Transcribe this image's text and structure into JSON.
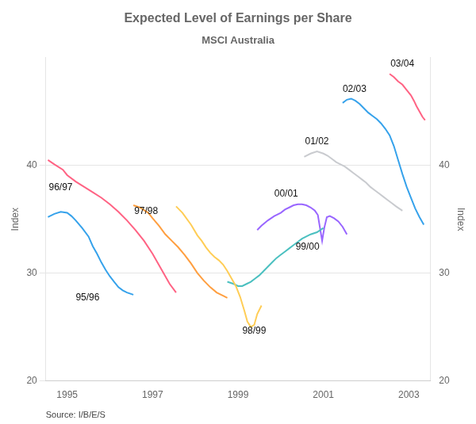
{
  "chart_data": {
    "type": "line",
    "title": "Expected Level of Earnings per Share",
    "subtitle": "MSCI Australia",
    "ylabel": "Index",
    "y2label": "Index",
    "source": "Source: I/B/E/S",
    "xlim": [
      1994.5,
      2003.5
    ],
    "xticks": [
      1995,
      1997,
      1999,
      2001,
      2003
    ],
    "ylim": [
      20,
      50
    ],
    "yticks": [
      20,
      30,
      40
    ],
    "y2lim": [
      20,
      50
    ],
    "y2ticks": [
      20,
      30,
      40
    ],
    "grid": "y",
    "series": [
      {
        "name": "95/96",
        "x": [
          1994.55,
          1994.7,
          1994.85,
          1995.0,
          1995.1,
          1995.2,
          1995.35,
          1995.5,
          1995.6,
          1995.7,
          1995.8,
          1995.9,
          1996.0,
          1996.1,
          1996.2,
          1996.3,
          1996.4,
          1996.55
        ],
        "values": [
          35.2,
          35.5,
          35.7,
          35.6,
          35.3,
          34.9,
          34.2,
          33.4,
          32.5,
          31.8,
          31.0,
          30.3,
          29.7,
          29.2,
          28.7,
          28.4,
          28.2,
          28.0
        ]
      },
      {
        "name": "96/97",
        "x": [
          1994.55,
          1994.7,
          1994.9,
          1995.0,
          1995.2,
          1995.4,
          1995.6,
          1995.8,
          1996.0,
          1996.2,
          1996.4,
          1996.6,
          1996.8,
          1997.0,
          1997.2,
          1997.4,
          1997.55
        ],
        "values": [
          40.5,
          40.1,
          39.6,
          39.1,
          38.5,
          38.0,
          37.5,
          37.0,
          36.4,
          35.7,
          34.9,
          34.0,
          33.0,
          31.8,
          30.4,
          29.0,
          28.2
        ]
      },
      {
        "name": "97/98",
        "x": [
          1996.55,
          1996.7,
          1996.9,
          1997.0,
          1997.15,
          1997.3,
          1997.45,
          1997.6,
          1997.75,
          1997.9,
          1998.05,
          1998.2,
          1998.35,
          1998.5,
          1998.65,
          1998.75
        ],
        "values": [
          36.3,
          36.1,
          35.6,
          35.1,
          34.4,
          33.6,
          33.0,
          32.4,
          31.7,
          30.9,
          30.0,
          29.3,
          28.7,
          28.2,
          27.9,
          27.7
        ]
      },
      {
        "name": "98/99",
        "x": [
          1997.55,
          1997.7,
          1997.9,
          1998.05,
          1998.15,
          1998.25,
          1998.35,
          1998.45,
          1998.55,
          1998.65,
          1998.75,
          1998.85,
          1998.95,
          1999.05,
          1999.15,
          1999.22,
          1999.3,
          1999.38,
          1999.45,
          1999.55
        ],
        "values": [
          36.2,
          35.6,
          34.5,
          33.5,
          33.0,
          32.4,
          31.9,
          31.5,
          31.2,
          30.8,
          30.2,
          29.5,
          28.8,
          27.8,
          26.5,
          25.5,
          25.0,
          25.2,
          26.2,
          27.0
        ]
      },
      {
        "name": "99/00",
        "x": [
          1998.75,
          1998.9,
          1999.0,
          1999.1,
          1999.2,
          1999.3,
          1999.4,
          1999.5,
          1999.6,
          1999.7,
          1999.8,
          1999.9,
          2000.0,
          2000.1,
          2000.2,
          2000.3,
          2000.4,
          2000.5,
          2000.6,
          2000.7,
          2000.85,
          2001.0
        ],
        "values": [
          29.2,
          29.0,
          28.8,
          28.8,
          29.0,
          29.2,
          29.5,
          29.8,
          30.2,
          30.6,
          31.0,
          31.4,
          31.7,
          32.0,
          32.3,
          32.6,
          32.9,
          33.2,
          33.4,
          33.6,
          33.8,
          34.2
        ]
      },
      {
        "name": "00/01",
        "x": [
          1999.45,
          1999.55,
          1999.7,
          1999.85,
          2000.0,
          2000.1,
          2000.2,
          2000.3,
          2000.4,
          2000.5,
          2000.6,
          2000.7,
          2000.8,
          2000.87,
          2000.92,
          2000.97,
          2001.02,
          2001.08,
          2001.15,
          2001.25,
          2001.35,
          2001.45,
          2001.55
        ],
        "values": [
          34.0,
          34.4,
          34.9,
          35.3,
          35.6,
          35.9,
          36.1,
          36.3,
          36.4,
          36.4,
          36.3,
          36.1,
          35.8,
          35.4,
          34.2,
          33.0,
          34.2,
          35.2,
          35.3,
          35.1,
          34.8,
          34.3,
          33.6
        ]
      },
      {
        "name": "01/02",
        "x": [
          2000.55,
          2000.7,
          2000.85,
          2001.0,
          2001.1,
          2001.2,
          2001.3,
          2001.4,
          2001.5,
          2001.6,
          2001.7,
          2001.8,
          2001.9,
          2002.0,
          2002.1,
          2002.2,
          2002.3,
          2002.4,
          2002.5,
          2002.6,
          2002.7,
          2002.85
        ],
        "values": [
          40.8,
          41.1,
          41.3,
          41.1,
          40.9,
          40.6,
          40.3,
          40.1,
          39.9,
          39.6,
          39.3,
          39.0,
          38.7,
          38.4,
          38.0,
          37.7,
          37.4,
          37.1,
          36.8,
          36.5,
          36.2,
          35.8
        ]
      },
      {
        "name": "02/03",
        "x": [
          2001.45,
          2001.55,
          2001.65,
          2001.75,
          2001.85,
          2001.95,
          2002.05,
          2002.15,
          2002.25,
          2002.35,
          2002.45,
          2002.55,
          2002.65,
          2002.75,
          2002.85,
          2002.95,
          2003.05,
          2003.15,
          2003.25,
          2003.35
        ],
        "values": [
          45.8,
          46.1,
          46.2,
          46.0,
          45.7,
          45.3,
          44.9,
          44.6,
          44.3,
          43.9,
          43.4,
          42.8,
          41.8,
          40.5,
          39.2,
          38.0,
          37.0,
          36.0,
          35.2,
          34.5
        ]
      },
      {
        "name": "03/04",
        "x": [
          2002.55,
          2002.65,
          2002.75,
          2002.85,
          2002.95,
          2003.05,
          2003.12,
          2003.18,
          2003.25,
          2003.32,
          2003.38
        ],
        "values": [
          48.5,
          48.2,
          47.8,
          47.5,
          47.0,
          46.5,
          46.0,
          45.5,
          45.0,
          44.5,
          44.2
        ]
      }
    ],
    "annotations": [
      {
        "text": "96/97",
        "x": 1994.57,
        "y": 37.5
      },
      {
        "text": "95/96",
        "x": 1995.2,
        "y": 27.3
      },
      {
        "text": "97/98",
        "x": 1996.57,
        "y": 35.3
      },
      {
        "text": "98/99",
        "x": 1999.1,
        "y": 24.2
      },
      {
        "text": "99/00",
        "x": 2000.35,
        "y": 32.0
      },
      {
        "text": "00/01",
        "x": 1999.85,
        "y": 36.9
      },
      {
        "text": "01/02",
        "x": 2000.57,
        "y": 41.8
      },
      {
        "text": "02/03",
        "x": 2001.45,
        "y": 46.6
      },
      {
        "text": "03/04",
        "x": 2002.57,
        "y": 49.0
      }
    ]
  }
}
